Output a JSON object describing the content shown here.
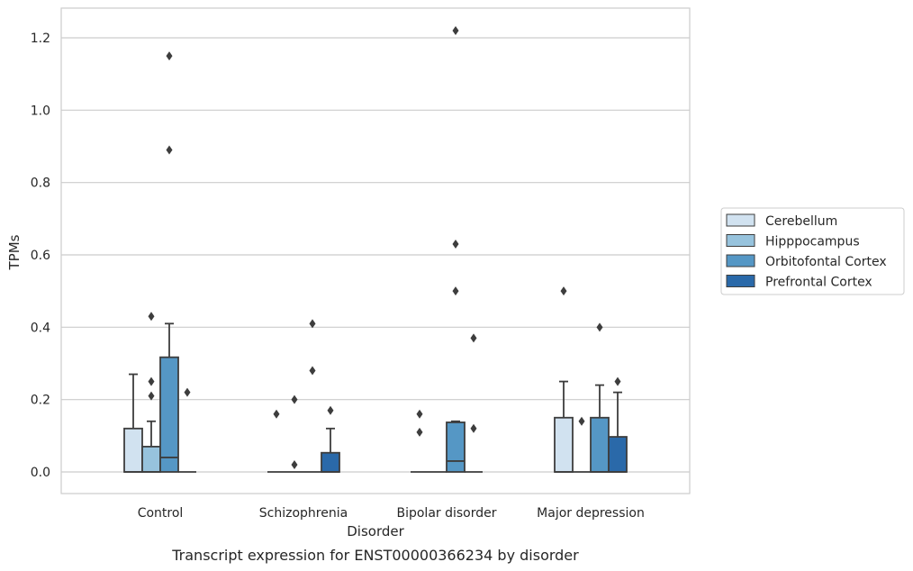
{
  "caption": "Transcript expression for ENST00000366234 by disorder",
  "chart_data": {
    "type": "box",
    "xlabel": "Disorder",
    "ylabel": "TPMs",
    "ylim": [
      -0.06,
      1.28
    ],
    "yticks": [
      0.0,
      0.2,
      0.4,
      0.6,
      0.8,
      1.0,
      1.2
    ],
    "ytick_labels": [
      "0.0",
      "0.2",
      "0.4",
      "0.6",
      "0.8",
      "1.0",
      "1.2"
    ],
    "grid": "horizontal",
    "legend_position": "right",
    "categories": [
      "Control",
      "Schizophrenia",
      "Bipolar disorder",
      "Major depression"
    ],
    "series": [
      {
        "name": "Cerebellum",
        "color": "#d1e2f0",
        "boxes": [
          {
            "q1": 0.0,
            "median": 0.0,
            "q3": 0.12,
            "whisker_low": 0.0,
            "whisker_high": 0.27,
            "outliers": []
          },
          {
            "q1": 0.0,
            "median": 0.0,
            "q3": 0.0,
            "whisker_low": 0.0,
            "whisker_high": 0.0,
            "outliers": [
              0.16
            ]
          },
          {
            "q1": 0.0,
            "median": 0.0,
            "q3": 0.0,
            "whisker_low": 0.0,
            "whisker_high": 0.0,
            "outliers": [
              0.16,
              0.11
            ]
          },
          {
            "q1": 0.0,
            "median": 0.0,
            "q3": 0.15,
            "whisker_low": 0.0,
            "whisker_high": 0.25,
            "outliers": [
              0.5
            ]
          }
        ]
      },
      {
        "name": "Hipppocampus",
        "color": "#97c3dd",
        "boxes": [
          {
            "q1": 0.0,
            "median": 0.0,
            "q3": 0.07,
            "whisker_low": 0.0,
            "whisker_high": 0.14,
            "outliers": [
              0.43,
              0.25,
              0.21
            ]
          },
          {
            "q1": 0.0,
            "median": 0.0,
            "q3": 0.0,
            "whisker_low": 0.0,
            "whisker_high": 0.0,
            "outliers": [
              0.2,
              0.02
            ]
          },
          {
            "q1": 0.0,
            "median": 0.0,
            "q3": 0.0,
            "whisker_low": 0.0,
            "whisker_high": 0.0,
            "outliers": []
          },
          {
            "q1": 0.0,
            "median": 0.0,
            "q3": 0.0,
            "whisker_low": 0.0,
            "whisker_high": 0.0,
            "outliers": [
              0.14
            ]
          }
        ]
      },
      {
        "name": "Orbitofontal Cortex",
        "color": "#5597c5",
        "boxes": [
          {
            "q1": 0.0,
            "median": 0.04,
            "q3": 0.317,
            "whisker_low": 0.0,
            "whisker_high": 0.41,
            "outliers": [
              1.15,
              0.89
            ]
          },
          {
            "q1": 0.0,
            "median": 0.0,
            "q3": 0.0,
            "whisker_low": 0.0,
            "whisker_high": 0.0,
            "outliers": [
              0.41,
              0.28
            ]
          },
          {
            "q1": 0.0,
            "median": 0.03,
            "q3": 0.137,
            "whisker_low": 0.0,
            "whisker_high": 0.14,
            "outliers": [
              1.22,
              0.63,
              0.5
            ]
          },
          {
            "q1": 0.0,
            "median": 0.0,
            "q3": 0.15,
            "whisker_low": 0.0,
            "whisker_high": 0.24,
            "outliers": [
              0.4
            ]
          }
        ]
      },
      {
        "name": "Prefrontal Cortex",
        "color": "#2a69a9",
        "boxes": [
          {
            "q1": 0.0,
            "median": 0.0,
            "q3": 0.0,
            "whisker_low": 0.0,
            "whisker_high": 0.0,
            "outliers": [
              0.22
            ]
          },
          {
            "q1": 0.0,
            "median": 0.0,
            "q3": 0.053,
            "whisker_low": 0.0,
            "whisker_high": 0.12,
            "outliers": [
              0.17
            ]
          },
          {
            "q1": 0.0,
            "median": 0.0,
            "q3": 0.0,
            "whisker_low": 0.0,
            "whisker_high": 0.0,
            "outliers": [
              0.37,
              0.12
            ]
          },
          {
            "q1": 0.0,
            "median": 0.0,
            "q3": 0.097,
            "whisker_low": 0.0,
            "whisker_high": 0.22,
            "outliers": [
              0.25
            ]
          }
        ]
      }
    ]
  }
}
